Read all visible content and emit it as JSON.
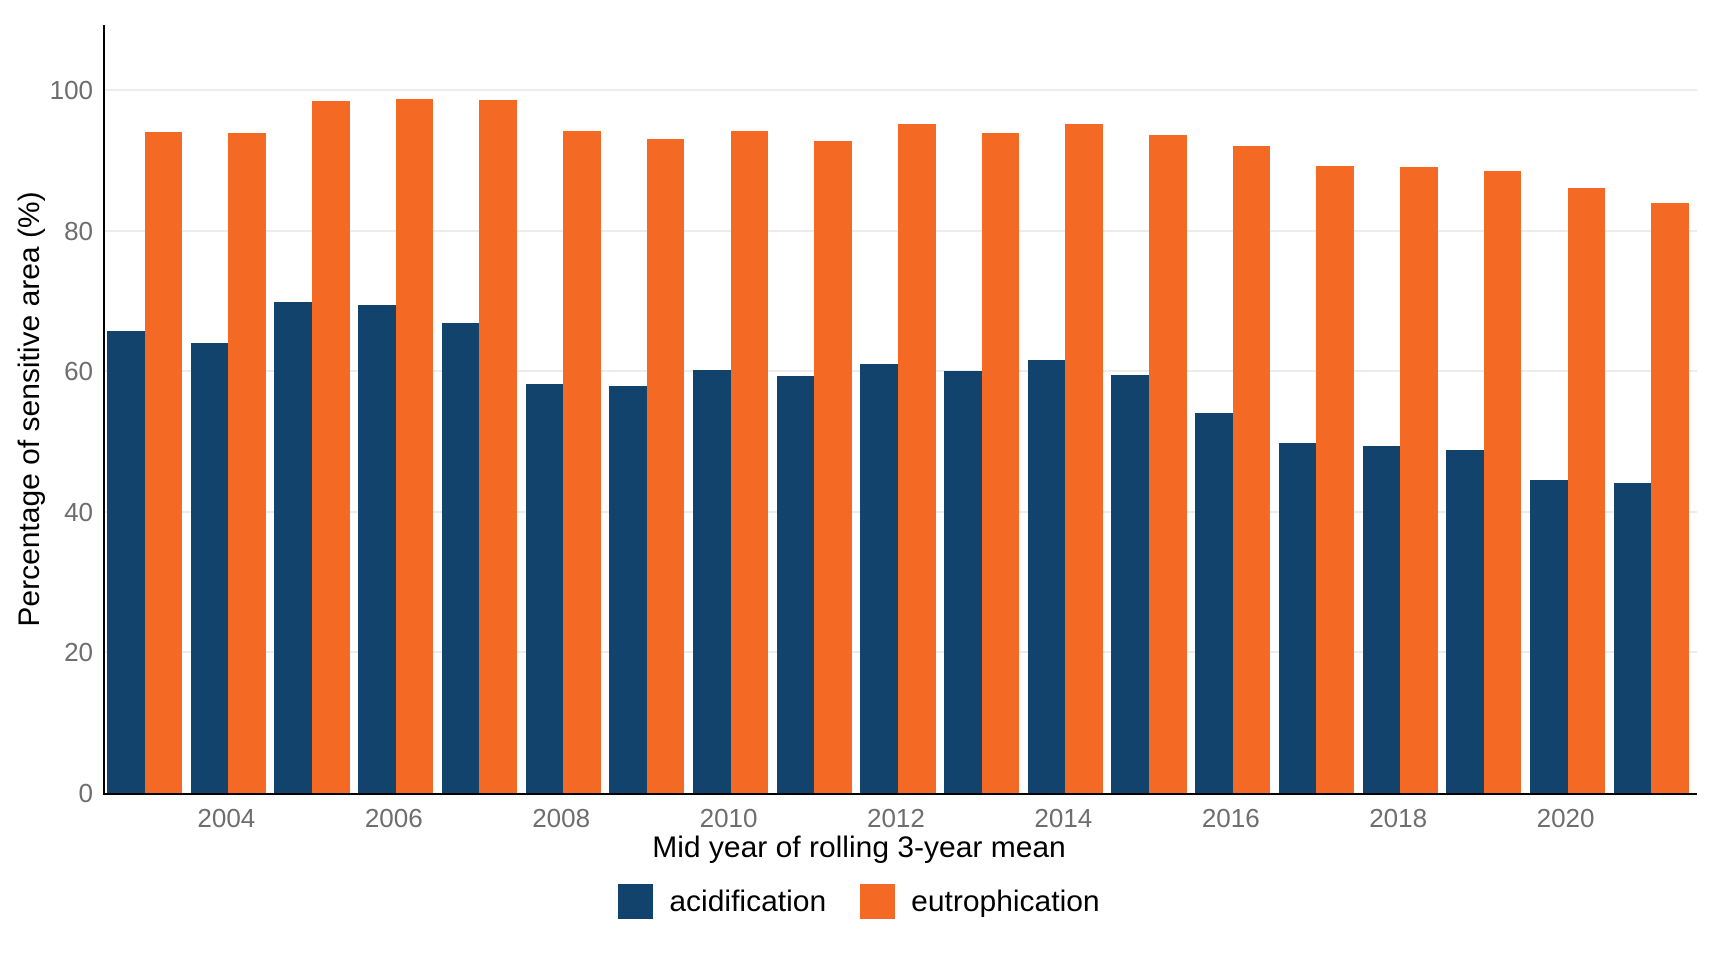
{
  "chart_data": {
    "type": "bar",
    "title": "",
    "xlabel": "Mid year of rolling 3-year mean",
    "ylabel": "Percentage of sensitive area (%)",
    "categories": [
      2003,
      2004,
      2005,
      2006,
      2007,
      2008,
      2009,
      2010,
      2011,
      2012,
      2013,
      2014,
      2015,
      2016,
      2017,
      2018,
      2019,
      2020,
      2021
    ],
    "series": [
      {
        "name": "acidification",
        "color": "#12436D",
        "values": [
          65.7,
          64.0,
          69.9,
          69.4,
          66.8,
          58.2,
          57.9,
          60.2,
          59.3,
          61.0,
          60.0,
          61.6,
          59.5,
          54.1,
          49.8,
          49.4,
          48.8,
          44.5,
          44.1
        ]
      },
      {
        "name": "eutrophication",
        "color": "#F46A25",
        "values": [
          94.0,
          93.9,
          98.4,
          98.7,
          98.6,
          94.2,
          93.0,
          94.1,
          92.7,
          95.1,
          93.9,
          95.2,
          93.6,
          92.0,
          89.2,
          89.0,
          88.5,
          86.1,
          83.9
        ]
      }
    ],
    "y_ticks": [
      0,
      20,
      40,
      60,
      80,
      100
    ],
    "x_tick_labels": [
      "2004",
      "2006",
      "2008",
      "2010",
      "2012",
      "2014",
      "2016",
      "2018",
      "2020"
    ],
    "ylim": [
      0,
      109
    ],
    "grid": "horizontal-major-only",
    "legend_position": "bottom-center",
    "colors": {
      "background": "#ffffff",
      "gridline": "#ececec",
      "axis_line": "#000000",
      "tick_label_text": "#6e6e6e",
      "title_text": "#000000"
    }
  }
}
